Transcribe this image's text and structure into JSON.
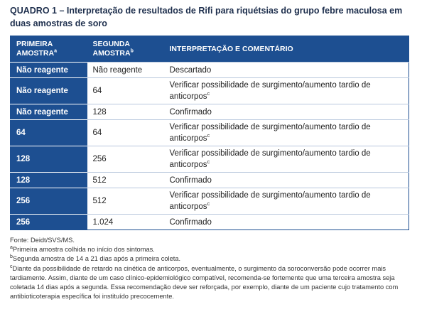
{
  "title": "QUADRO 1 – Interpretação de resultados de Rifi para riquétsias do grupo febre maculosa em duas amostras de soro",
  "table": {
    "headers": [
      {
        "text": "PRIMEIRA AMOSTRA",
        "sup": "a"
      },
      {
        "text": "SEGUNDA AMOSTRA",
        "sup": "b"
      },
      {
        "text": "INTERPRETAÇÃO E COMENTÁRIO"
      }
    ],
    "rows": [
      [
        "Não reagente",
        "Não reagente",
        {
          "text": "Descartado"
        }
      ],
      [
        "Não reagente",
        "64",
        {
          "text": "Verificar possibilidade de surgimento/aumento tardio de anticorpos",
          "sup": "c"
        }
      ],
      [
        "Não reagente",
        "128",
        {
          "text": "Confirmado"
        }
      ],
      [
        "64",
        "64",
        {
          "text": "Verificar possibilidade de surgimento/aumento tardio de anticorpos",
          "sup": "c"
        }
      ],
      [
        "128",
        "256",
        {
          "text": "Verificar possibilidade de surgimento/aumento tardio de anticorpos",
          "sup": "c"
        }
      ],
      [
        "128",
        "512",
        {
          "text": "Confirmado"
        }
      ],
      [
        "256",
        "512",
        {
          "text": "Verificar possibilidade de surgimento/aumento tardio de anticorpos",
          "sup": "c"
        }
      ],
      [
        "256",
        "1.024",
        {
          "text": "Confirmado"
        }
      ]
    ]
  },
  "footnotes": {
    "source": "Fonte: Deidt/SVS/MS.",
    "notes": [
      {
        "mark": "a",
        "text": "Primeira amostra colhida no início dos sintomas."
      },
      {
        "mark": "b",
        "text": "Segunda amostra de 14 a 21 dias após a primeira coleta."
      },
      {
        "mark": "c",
        "text": "Diante da possibilidade de retardo na cinética de anticorpos, eventualmente, o surgimento da soroconversão pode ocorrer mais tardiamente. Assim, diante de um caso clínico-epidemiológico compatível, recomenda-se fortemente que uma terceira amostra seja coletada 14 dias após a segunda. Essa recomendação deve ser reforçada, por exemplo, diante de um paciente cujo tratamento com antibioticoterapia específica foi instituído precocemente."
      }
    ]
  }
}
